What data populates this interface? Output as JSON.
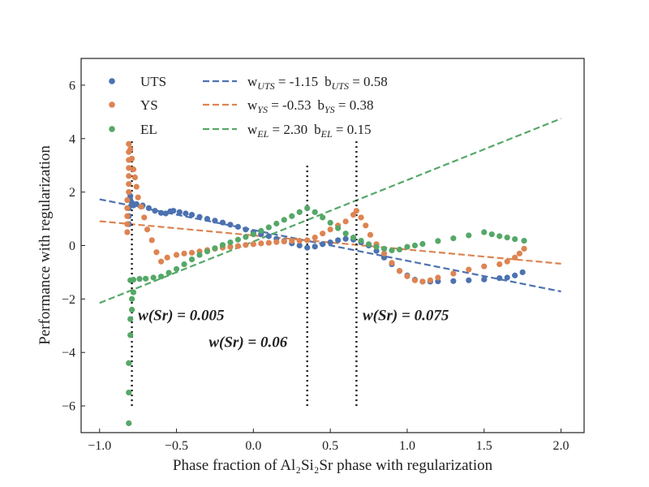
{
  "chart_data": {
    "type": "scatter",
    "title": "",
    "xlabel": "Phase fraction of Al₂Si₂Sr phase with regularization",
    "ylabel": "Performance with regularization",
    "xlim": [
      -1.12,
      2.15
    ],
    "ylim": [
      -7.0,
      7.0
    ],
    "xticks": [
      -1.0,
      -0.5,
      0.0,
      0.5,
      1.0,
      1.5,
      2.0
    ],
    "xtick_labels": [
      "−1.0",
      "−0.5",
      "0.0",
      "0.5",
      "1.0",
      "1.5",
      "2.0"
    ],
    "yticks": [
      -6,
      -4,
      -2,
      0,
      2,
      4,
      6
    ],
    "ytick_labels": [
      "−6",
      "−4",
      "−2",
      "0",
      "2",
      "4",
      "6"
    ],
    "grid": false,
    "legend_position": "top-left",
    "series": [
      {
        "name": "UTS",
        "color": "#4c72b0",
        "points": [
          [
            -0.81,
            0.8
          ],
          [
            -0.81,
            1.1
          ],
          [
            -0.81,
            1.4
          ],
          [
            -0.8,
            1.7
          ],
          [
            -0.8,
            1.85
          ],
          [
            -0.79,
            1.6
          ],
          [
            -0.78,
            1.5
          ],
          [
            -0.76,
            1.55
          ],
          [
            -0.72,
            1.5
          ],
          [
            -0.68,
            1.4
          ],
          [
            -0.64,
            1.3
          ],
          [
            -0.6,
            1.22
          ],
          [
            -0.57,
            1.2
          ],
          [
            -0.54,
            1.28
          ],
          [
            -0.52,
            1.3
          ],
          [
            -0.48,
            1.25
          ],
          [
            -0.44,
            1.2
          ],
          [
            -0.4,
            1.15
          ],
          [
            -0.35,
            1.07
          ],
          [
            -0.3,
            1.0
          ],
          [
            -0.25,
            0.93
          ],
          [
            -0.2,
            0.86
          ],
          [
            -0.15,
            0.78
          ],
          [
            -0.1,
            0.7
          ],
          [
            -0.05,
            0.6
          ],
          [
            0.0,
            0.5
          ],
          [
            0.05,
            0.42
          ],
          [
            0.1,
            0.35
          ],
          [
            0.15,
            0.25
          ],
          [
            0.2,
            0.17
          ],
          [
            0.25,
            0.08
          ],
          [
            0.3,
            0.0
          ],
          [
            0.35,
            -0.08
          ],
          [
            0.4,
            -0.04
          ],
          [
            0.45,
            0.05
          ],
          [
            0.5,
            0.12
          ],
          [
            0.55,
            0.2
          ],
          [
            0.6,
            0.25
          ],
          [
            0.65,
            0.22
          ],
          [
            0.7,
            0.12
          ],
          [
            0.75,
            0.0
          ],
          [
            0.8,
            -0.2
          ],
          [
            0.85,
            -0.45
          ],
          [
            0.9,
            -0.7
          ],
          [
            0.95,
            -0.95
          ],
          [
            1.0,
            -1.12
          ],
          [
            1.05,
            -1.28
          ],
          [
            1.1,
            -1.35
          ],
          [
            1.15,
            -1.35
          ],
          [
            1.2,
            -1.34
          ],
          [
            1.3,
            -1.33
          ],
          [
            1.4,
            -1.3
          ],
          [
            1.5,
            -1.27
          ],
          [
            1.6,
            -1.22
          ],
          [
            1.65,
            -1.2
          ],
          [
            1.7,
            -1.12
          ],
          [
            1.75,
            -1.0
          ]
        ]
      },
      {
        "name": "YS",
        "color": "#dd8452",
        "points": [
          [
            -0.82,
            0.5
          ],
          [
            -0.82,
            0.8
          ],
          [
            -0.82,
            1.1
          ],
          [
            -0.82,
            1.4
          ],
          [
            -0.82,
            1.7
          ],
          [
            -0.81,
            2.0
          ],
          [
            -0.81,
            2.3
          ],
          [
            -0.81,
            2.6
          ],
          [
            -0.81,
            2.9
          ],
          [
            -0.81,
            3.2
          ],
          [
            -0.81,
            3.5
          ],
          [
            -0.81,
            3.8
          ],
          [
            -0.8,
            3.6
          ],
          [
            -0.79,
            3.25
          ],
          [
            -0.78,
            2.85
          ],
          [
            -0.77,
            2.55
          ],
          [
            -0.76,
            2.2
          ],
          [
            -0.75,
            1.8
          ],
          [
            -0.73,
            1.45
          ],
          [
            -0.71,
            1.05
          ],
          [
            -0.69,
            0.6
          ],
          [
            -0.66,
            0.2
          ],
          [
            -0.63,
            -0.25
          ],
          [
            -0.6,
            -0.6
          ],
          [
            -0.56,
            -0.45
          ],
          [
            -0.5,
            -0.35
          ],
          [
            -0.45,
            -0.3
          ],
          [
            -0.4,
            -0.27
          ],
          [
            -0.35,
            -0.22
          ],
          [
            -0.3,
            -0.17
          ],
          [
            -0.25,
            -0.12
          ],
          [
            -0.2,
            -0.08
          ],
          [
            -0.15,
            -0.05
          ],
          [
            -0.1,
            -0.02
          ],
          [
            -0.05,
            0.02
          ],
          [
            0.0,
            0.05
          ],
          [
            0.05,
            0.08
          ],
          [
            0.1,
            0.1
          ],
          [
            0.15,
            0.13
          ],
          [
            0.2,
            0.15
          ],
          [
            0.25,
            0.17
          ],
          [
            0.3,
            0.18
          ],
          [
            0.35,
            0.2
          ],
          [
            0.4,
            0.3
          ],
          [
            0.45,
            0.45
          ],
          [
            0.5,
            0.6
          ],
          [
            0.55,
            0.75
          ],
          [
            0.6,
            0.9
          ],
          [
            0.65,
            1.15
          ],
          [
            0.67,
            1.3
          ],
          [
            0.7,
            1.05
          ],
          [
            0.73,
            0.75
          ],
          [
            0.76,
            0.4
          ],
          [
            0.8,
            0.05
          ],
          [
            0.85,
            -0.3
          ],
          [
            0.9,
            -0.65
          ],
          [
            0.95,
            -0.95
          ],
          [
            1.0,
            -1.15
          ],
          [
            1.05,
            -1.3
          ],
          [
            1.1,
            -1.35
          ],
          [
            1.15,
            -1.3
          ],
          [
            1.2,
            -1.2
          ],
          [
            1.3,
            -1.05
          ],
          [
            1.4,
            -0.9
          ],
          [
            1.5,
            -0.78
          ],
          [
            1.6,
            -0.7
          ],
          [
            1.65,
            -0.6
          ],
          [
            1.7,
            -0.45
          ],
          [
            1.73,
            -0.3
          ],
          [
            1.76,
            -0.12
          ]
        ]
      },
      {
        "name": "EL",
        "color": "#55a868",
        "points": [
          [
            -0.81,
            -6.65
          ],
          [
            -0.81,
            -5.5
          ],
          [
            -0.81,
            -4.4
          ],
          [
            -0.8,
            -3.35
          ],
          [
            -0.8,
            -2.75
          ],
          [
            -0.79,
            -2.4
          ],
          [
            -0.79,
            -2.0
          ],
          [
            -0.78,
            -1.75
          ],
          [
            -0.8,
            -1.3
          ],
          [
            -0.78,
            -1.28
          ],
          [
            -0.74,
            -1.25
          ],
          [
            -0.7,
            -1.24
          ],
          [
            -0.65,
            -1.2
          ],
          [
            -0.6,
            -1.16
          ],
          [
            -0.55,
            -1.02
          ],
          [
            -0.5,
            -0.88
          ],
          [
            -0.45,
            -0.7
          ],
          [
            -0.4,
            -0.52
          ],
          [
            -0.35,
            -0.35
          ],
          [
            -0.3,
            -0.22
          ],
          [
            -0.25,
            -0.1
          ],
          [
            -0.2,
            0.02
          ],
          [
            -0.15,
            0.12
          ],
          [
            -0.1,
            0.22
          ],
          [
            -0.05,
            0.32
          ],
          [
            0.0,
            0.42
          ],
          [
            0.05,
            0.55
          ],
          [
            0.1,
            0.68
          ],
          [
            0.15,
            0.82
          ],
          [
            0.2,
            0.96
          ],
          [
            0.25,
            1.1
          ],
          [
            0.3,
            1.25
          ],
          [
            0.35,
            1.4
          ],
          [
            0.4,
            1.25
          ],
          [
            0.45,
            1.05
          ],
          [
            0.5,
            0.85
          ],
          [
            0.55,
            0.65
          ],
          [
            0.6,
            0.45
          ],
          [
            0.65,
            0.3
          ],
          [
            0.7,
            0.18
          ],
          [
            0.75,
            0.05
          ],
          [
            0.8,
            -0.05
          ],
          [
            0.85,
            -0.12
          ],
          [
            0.9,
            -0.18
          ],
          [
            0.95,
            -0.15
          ],
          [
            1.0,
            -0.05
          ],
          [
            1.05,
            0.0
          ],
          [
            1.1,
            0.06
          ],
          [
            1.2,
            0.17
          ],
          [
            1.3,
            0.27
          ],
          [
            1.4,
            0.38
          ],
          [
            1.5,
            0.5
          ],
          [
            1.55,
            0.42
          ],
          [
            1.6,
            0.35
          ],
          [
            1.65,
            0.3
          ],
          [
            1.7,
            0.24
          ],
          [
            1.76,
            0.18
          ]
        ]
      }
    ],
    "fit_lines": [
      {
        "name": "w_UTS = -1.15  b_UTS = 0.58",
        "series": "UTS",
        "color": "#4c72b0",
        "w": -1.15,
        "b": 0.58,
        "x_range": [
          -1.0,
          2.0
        ]
      },
      {
        "name": "w_YS = -0.53  b_YS = 0.38",
        "series": "YS",
        "color": "#dd8452",
        "w": -0.53,
        "b": 0.38,
        "x_range": [
          -1.0,
          2.0
        ]
      },
      {
        "name": "w_EL = 2.30  b_EL = 0.15",
        "series": "EL",
        "color": "#55a868",
        "w": 2.3,
        "b": 0.15,
        "x_range": [
          -1.0,
          2.0
        ]
      }
    ],
    "vlines": [
      {
        "x": -0.79,
        "y_range": [
          -6.0,
          3.9
        ],
        "label": "w(Sr) = 0.005"
      },
      {
        "x": 0.35,
        "y_range": [
          -6.0,
          3.1
        ],
        "label": "w(Sr) = 0.06"
      },
      {
        "x": 0.67,
        "y_range": [
          -6.0,
          3.9
        ],
        "label": "w(Sr) = 0.075"
      }
    ],
    "annotations": [
      {
        "text": "w(Sr) = 0.005",
        "x": -0.75,
        "y": -2.8
      },
      {
        "text": "w(Sr) = 0.06",
        "x": -0.29,
        "y": -3.8
      },
      {
        "text": "w(Sr) = 0.075",
        "x": 0.71,
        "y": -2.8
      }
    ],
    "legend": {
      "markers": [
        {
          "label": "UTS",
          "color": "#4c72b0"
        },
        {
          "label": "YS",
          "color": "#dd8452"
        },
        {
          "label": "EL",
          "color": "#55a868"
        }
      ],
      "lines": [
        {
          "w_label": "w",
          "w_sub": "UTS",
          "w_val": " = -1.15",
          "b_label": "b",
          "b_sub": "UTS",
          "b_val": " = 0.58",
          "color": "#4c72b0"
        },
        {
          "w_label": "w",
          "w_sub": "YS",
          "w_val": " = -0.53",
          "b_label": "b",
          "b_sub": "YS",
          "b_val": " = 0.38",
          "color": "#dd8452"
        },
        {
          "w_label": "w",
          "w_sub": "EL",
          "w_val": " = 2.30",
          "b_label": "b",
          "b_sub": "EL",
          "b_val": " = 0.15",
          "color": "#55a868"
        }
      ]
    }
  }
}
